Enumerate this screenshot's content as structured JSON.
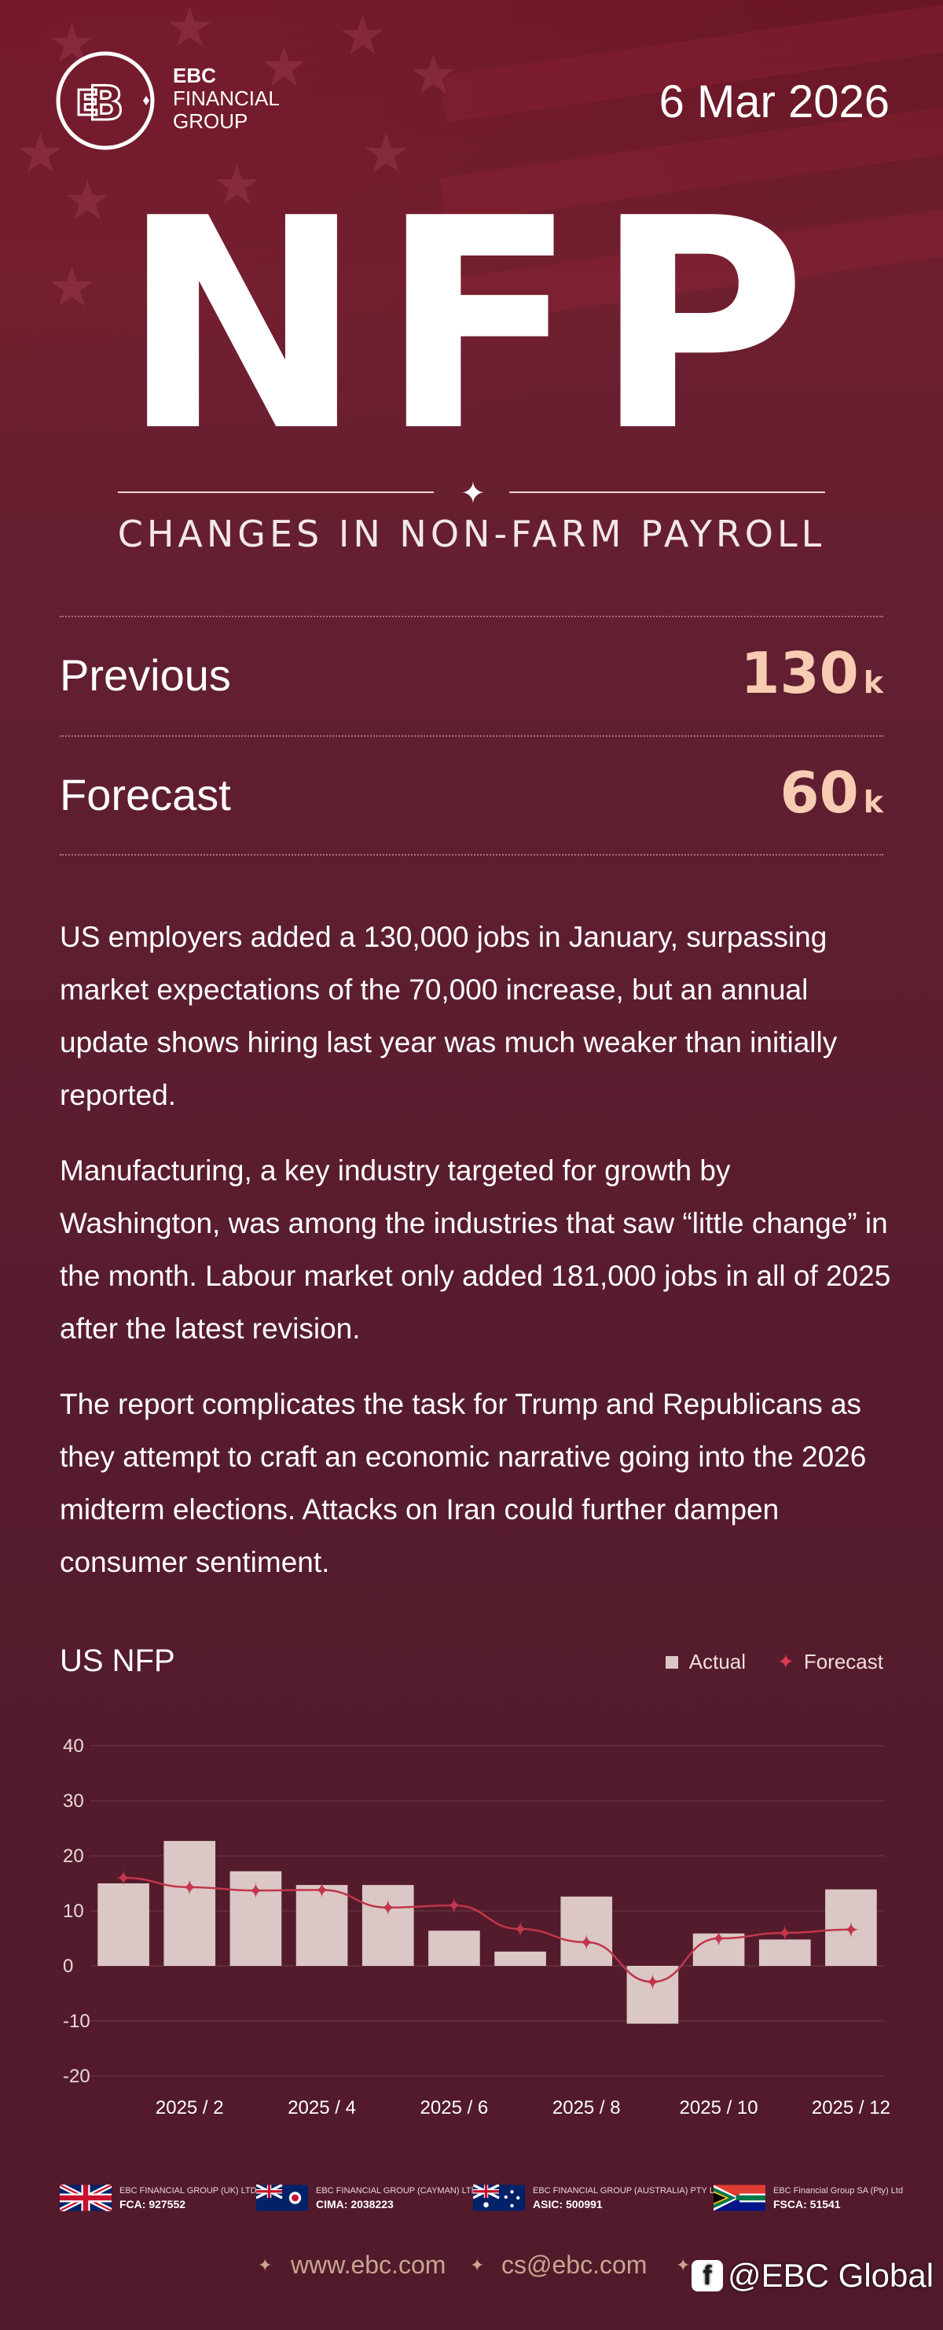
{
  "header": {
    "logo_lines": [
      "EBC",
      "FINANCIAL",
      "GROUP"
    ],
    "date": "6 Mar 2026"
  },
  "hero": {
    "title": "NFP",
    "subtitle": "CHANGES IN NON-FARM PAYROLL"
  },
  "stats": [
    {
      "label": "Previous",
      "value": "130",
      "unit": "k"
    },
    {
      "label": "Forecast",
      "value": "60",
      "unit": "k"
    }
  ],
  "paragraphs": [
    "US employers added a 130,000 jobs in January, surpassing market expectations of the 70,000 increase, but an annual update shows hiring last year was much weaker than initially reported.",
    "Manufacturing, a key industry targeted for growth by Washington, was among the industries that saw “little change” in the month. Labour market only added 181,000 jobs in all of 2025 after the latest revision.",
    "The report complicates the task for Trump and Republicans as they attempt to craft an economic narrative going into the 2026 midterm elections. Attacks on Iran could further dampen consumer sentiment."
  ],
  "chart_title": "US NFP",
  "legend": {
    "actual": "Actual",
    "forecast": "Forecast"
  },
  "colors": {
    "actual_bar": "#dbc7c5",
    "forecast_line": "#c0364a",
    "stat_value": "#f7ccb3",
    "link": "#c7a58e"
  },
  "chart_data": {
    "type": "bar",
    "categories": [
      "2025 / 1",
      "2025 / 2",
      "2025 / 3",
      "2025 / 4",
      "2025 / 5",
      "2025 / 6",
      "2025 / 7",
      "2025 / 8",
      "2025 / 9",
      "2025 / 10",
      "2025 / 11",
      "2025 / 12"
    ],
    "x_tick_labels": [
      "2025 / 2",
      "2025 / 4",
      "2025 / 6",
      "2025 / 8",
      "2025 / 10",
      "2025 / 12"
    ],
    "series": [
      {
        "name": "Actual",
        "type": "bar",
        "values": [
          15,
          22.7,
          17.2,
          14.7,
          14.7,
          6.4,
          2.6,
          12.6,
          -10.5,
          5.9,
          4.8,
          13.9
        ]
      },
      {
        "name": "Forecast",
        "type": "line",
        "values": [
          16,
          14.3,
          13.7,
          13.8,
          10.6,
          11,
          6.7,
          4.3,
          -2.9,
          5,
          6,
          6.6
        ]
      }
    ],
    "yticks": [
      40,
      30,
      20,
      10,
      0,
      -10,
      -20
    ],
    "ylim": [
      -20,
      40
    ],
    "grid": true,
    "legend_position": "top-right"
  },
  "regulators": [
    {
      "name": "EBC FINANCIAL GROUP (UK) LTD",
      "code": "FCA: 927552",
      "flag": "uk"
    },
    {
      "name": "EBC FINANCIAL GROUP (CAYMAN) LTD",
      "code": "CIMA: 2038223",
      "flag": "cayman"
    },
    {
      "name": "EBC FINANCIAL GROUP (AUSTRALIA) PTY LTD",
      "code": "ASIC: 500991",
      "flag": "australia"
    },
    {
      "name": "EBC Financial Group SA (Pty) Ltd",
      "code": "FSCA: 51541",
      "flag": "south-africa"
    }
  ],
  "footer": {
    "website": "www.ebc.com",
    "email": "cs@ebc.com",
    "social_handle": "@EBC Global",
    "social_icon": "facebook-icon"
  }
}
